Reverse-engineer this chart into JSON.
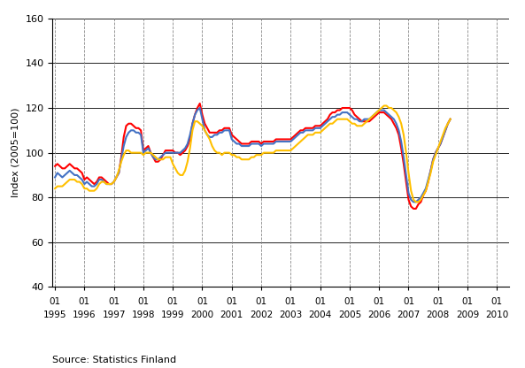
{
  "title": "",
  "ylabel": "Index (2005=100)",
  "source_text": "Source: Statistics Finland",
  "ylim": [
    40,
    160
  ],
  "yticks": [
    40,
    60,
    80,
    100,
    120,
    140,
    160
  ],
  "background_color": "#ffffff",
  "total_color": "#4472c4",
  "domestic_color": "#ffc000",
  "export_color": "#ff0000",
  "line_width": 1.5,
  "total_turnover": [
    89,
    91,
    90,
    89,
    90,
    91,
    92,
    91,
    90,
    90,
    89,
    88,
    86,
    87,
    86,
    85,
    85,
    86,
    88,
    88,
    87,
    86,
    86,
    86,
    87,
    89,
    91,
    97,
    103,
    107,
    109,
    110,
    110,
    109,
    109,
    108,
    100,
    101,
    102,
    100,
    98,
    97,
    97,
    98,
    99,
    100,
    100,
    100,
    100,
    100,
    100,
    100,
    101,
    102,
    104,
    108,
    113,
    117,
    119,
    120,
    115,
    110,
    108,
    107,
    107,
    108,
    108,
    109,
    109,
    110,
    110,
    110,
    106,
    105,
    104,
    104,
    103,
    103,
    103,
    103,
    104,
    104,
    104,
    104,
    103,
    104,
    104,
    104,
    104,
    104,
    105,
    105,
    105,
    105,
    105,
    105,
    105,
    106,
    107,
    108,
    109,
    109,
    110,
    110,
    110,
    110,
    111,
    111,
    111,
    112,
    113,
    114,
    115,
    116,
    116,
    117,
    117,
    118,
    118,
    118,
    117,
    116,
    115,
    115,
    114,
    114,
    115,
    115,
    115,
    116,
    117,
    118,
    119,
    119,
    119,
    118,
    117,
    116,
    115,
    113,
    110,
    105,
    98,
    90,
    82,
    79,
    78,
    78,
    79,
    80,
    82,
    84,
    88,
    92,
    97,
    100,
    102,
    104,
    107,
    110,
    113,
    115
  ],
  "domestic_turnover": [
    84,
    85,
    85,
    85,
    86,
    87,
    88,
    88,
    88,
    87,
    87,
    86,
    84,
    84,
    83,
    83,
    83,
    84,
    86,
    87,
    87,
    86,
    86,
    86,
    87,
    89,
    92,
    96,
    99,
    101,
    101,
    100,
    100,
    100,
    100,
    100,
    99,
    100,
    100,
    100,
    99,
    98,
    97,
    97,
    97,
    98,
    98,
    98,
    95,
    93,
    91,
    90,
    90,
    92,
    96,
    102,
    110,
    114,
    114,
    113,
    112,
    110,
    108,
    106,
    103,
    101,
    100,
    100,
    99,
    100,
    100,
    100,
    99,
    99,
    98,
    98,
    97,
    97,
    97,
    97,
    98,
    98,
    99,
    99,
    99,
    100,
    100,
    100,
    100,
    100,
    101,
    101,
    101,
    101,
    101,
    101,
    101,
    102,
    103,
    104,
    105,
    106,
    107,
    108,
    108,
    108,
    109,
    109,
    109,
    110,
    111,
    112,
    113,
    113,
    114,
    115,
    115,
    115,
    115,
    115,
    114,
    113,
    113,
    112,
    112,
    112,
    113,
    114,
    115,
    116,
    117,
    118,
    119,
    120,
    121,
    121,
    120,
    120,
    119,
    118,
    116,
    113,
    108,
    100,
    91,
    83,
    79,
    78,
    78,
    79,
    81,
    83,
    87,
    91,
    96,
    99,
    102,
    105,
    108,
    111,
    113,
    115
  ],
  "export_turnover": [
    94,
    95,
    94,
    93,
    93,
    94,
    95,
    94,
    93,
    93,
    92,
    91,
    88,
    89,
    88,
    87,
    86,
    87,
    89,
    89,
    88,
    87,
    86,
    86,
    87,
    89,
    91,
    98,
    107,
    112,
    113,
    113,
    112,
    111,
    111,
    110,
    101,
    102,
    103,
    100,
    98,
    96,
    96,
    97,
    99,
    101,
    101,
    101,
    101,
    100,
    100,
    99,
    100,
    101,
    103,
    106,
    113,
    117,
    120,
    122,
    117,
    113,
    111,
    109,
    109,
    109,
    109,
    110,
    110,
    111,
    111,
    111,
    108,
    107,
    106,
    105,
    104,
    104,
    104,
    104,
    105,
    105,
    105,
    105,
    104,
    105,
    105,
    105,
    105,
    105,
    106,
    106,
    106,
    106,
    106,
    106,
    106,
    107,
    108,
    109,
    110,
    110,
    111,
    111,
    111,
    111,
    112,
    112,
    112,
    113,
    114,
    115,
    117,
    118,
    118,
    119,
    119,
    120,
    120,
    120,
    120,
    119,
    117,
    116,
    115,
    114,
    114,
    114,
    114,
    115,
    116,
    117,
    118,
    118,
    118,
    117,
    116,
    115,
    113,
    111,
    108,
    102,
    95,
    87,
    79,
    76,
    75,
    75,
    77,
    78,
    81,
    83,
    87,
    92,
    97,
    100,
    102,
    104,
    107,
    110,
    113,
    115
  ],
  "x_tick_positions": [
    0,
    12,
    24,
    36,
    48,
    60,
    72,
    84,
    96,
    108,
    120,
    132,
    144,
    156,
    168,
    180
  ],
  "x_tick_labels_01": [
    "01",
    "01",
    "01",
    "01",
    "01",
    "01",
    "01",
    "01",
    "01",
    "01",
    "01",
    "01",
    "01",
    "01",
    "01",
    "01"
  ],
  "x_tick_labels_year": [
    "1995",
    "1996",
    "1997",
    "1998",
    "1999",
    "2000",
    "2001",
    "2002",
    "2003",
    "2004",
    "2005",
    "2006",
    "2007",
    "2008",
    "2009",
    "2010"
  ]
}
